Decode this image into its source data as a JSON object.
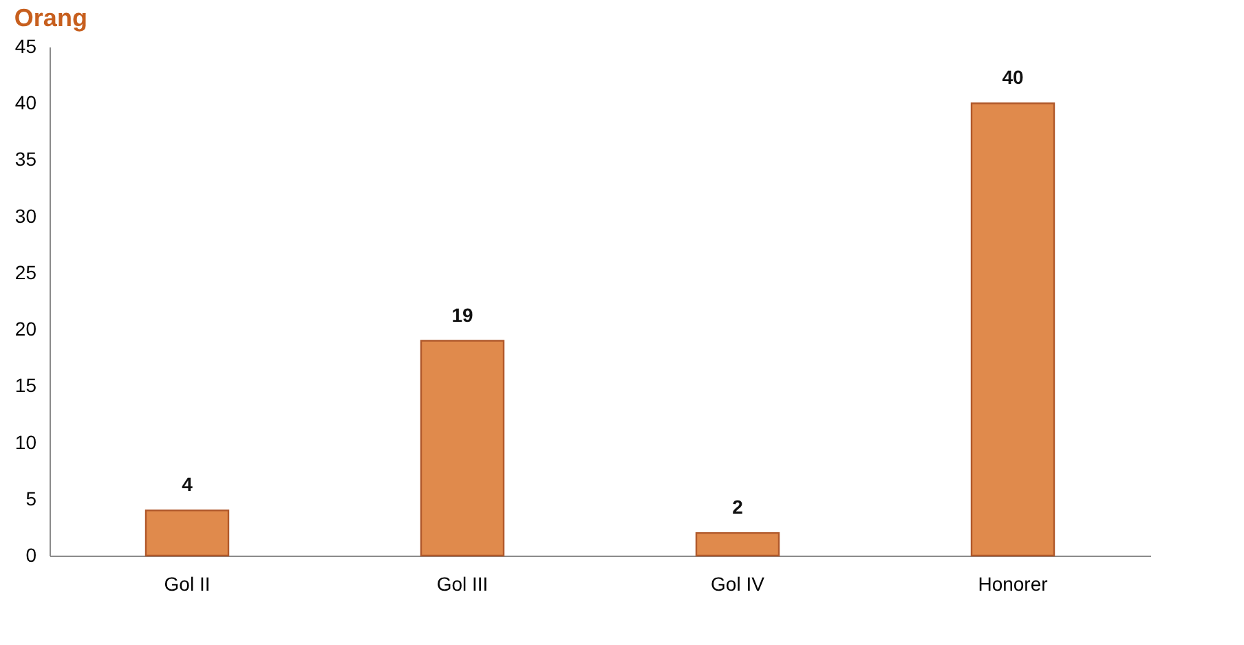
{
  "chart_data": {
    "type": "bar",
    "title": "Orang",
    "categories": [
      "Gol II",
      "Gol III",
      "Gol IV",
      "Honorer"
    ],
    "values": [
      4,
      19,
      2,
      40
    ],
    "color": "#e08a4c",
    "ylim": [
      0,
      45
    ],
    "yticks": [
      0,
      5,
      10,
      15,
      20,
      25,
      30,
      35,
      40,
      45
    ],
    "grid": false,
    "data_labels": true
  }
}
